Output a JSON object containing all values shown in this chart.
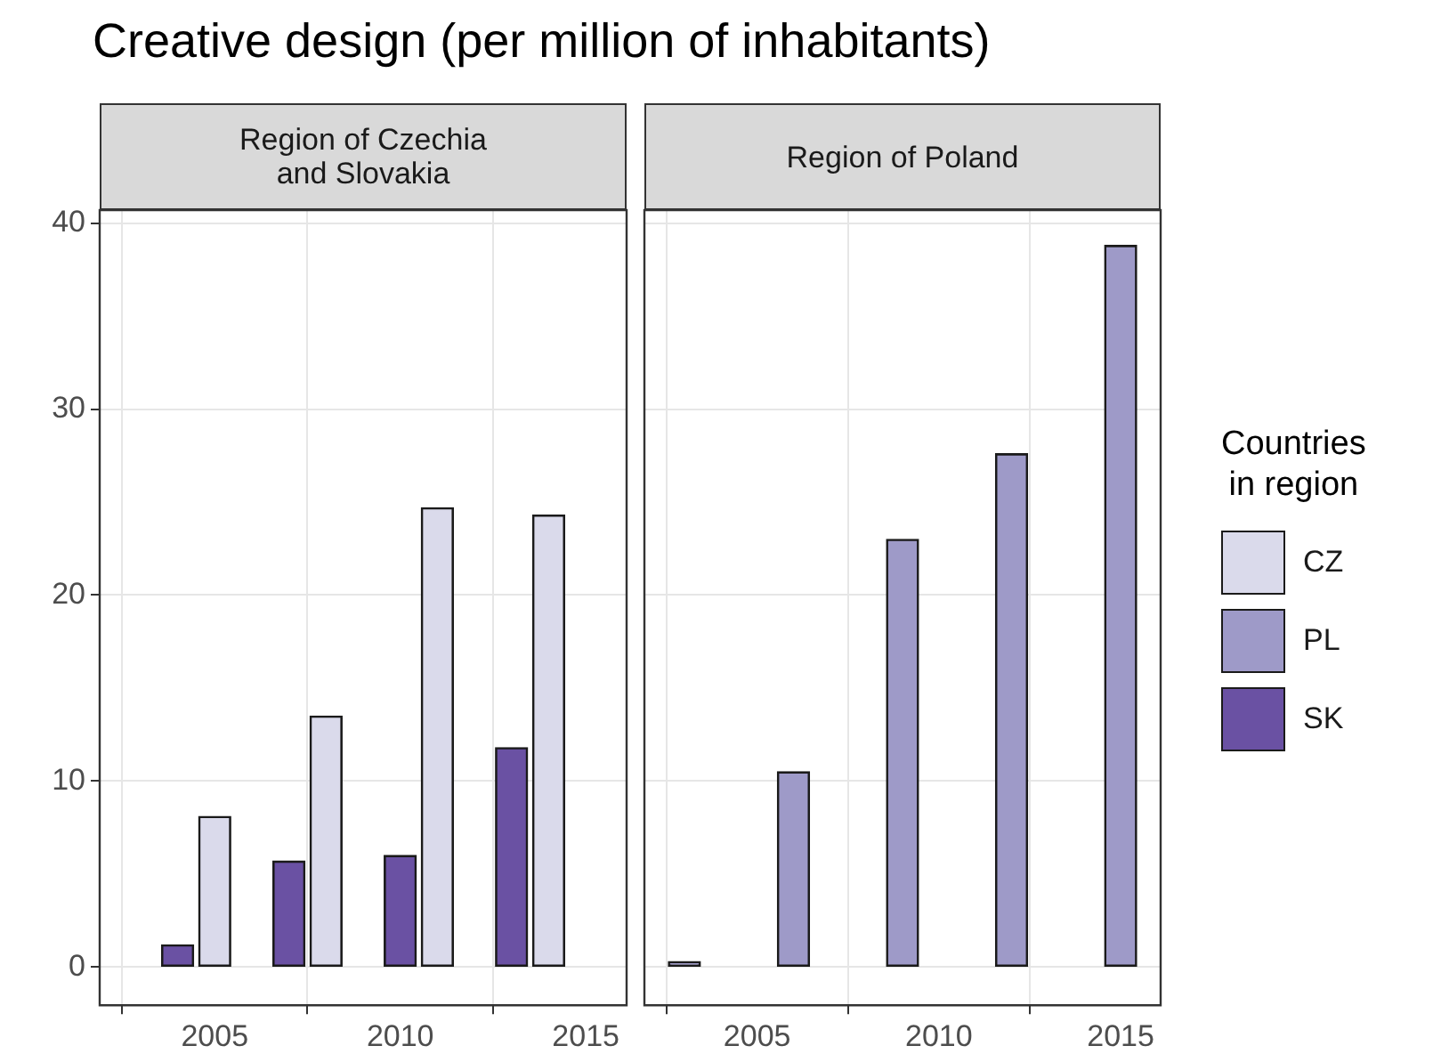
{
  "chart_data": [
    {
      "type": "bar",
      "title": "Creative design (per million of inhabitants)",
      "subtitle": "Region of Czechia\nand Slovakia",
      "legend": "right",
      "legend_title": "Countries\nin region",
      "grid": true,
      "xlim": [
        2001.9,
        2016.1
      ],
      "xticks": [
        2005,
        2010,
        2015
      ],
      "ylim": [
        -2.05,
        40.7
      ],
      "yticks": [
        0,
        10,
        20,
        30,
        40
      ],
      "series": [
        {
          "name": "CZ",
          "color": "#dadaeb",
          "x": [
            2005,
            2008,
            2011,
            2014
          ],
          "values": [
            8.1,
            13.5,
            24.7,
            24.3
          ]
        },
        {
          "name": "SK",
          "color": "#6a51a3",
          "x": [
            2004,
            2007,
            2010,
            2013
          ],
          "values": [
            1.2,
            5.7,
            6.0,
            11.8
          ]
        }
      ]
    },
    {
      "type": "bar",
      "subtitle": "Region of Poland",
      "grid": true,
      "tick_labels": "x",
      "xlim": [
        2001.9,
        2016.1
      ],
      "xticks": [
        2005,
        2010,
        2015
      ],
      "ylim": [
        -2.05,
        40.7
      ],
      "yticks": [
        0,
        10,
        20,
        30,
        40
      ],
      "series": [
        {
          "name": "PL",
          "color": "#9e9ac8",
          "x": [
            2003,
            2006,
            2009,
            2012,
            2015
          ],
          "values": [
            0.3,
            10.5,
            23.0,
            27.6,
            38.8
          ]
        }
      ]
    }
  ]
}
